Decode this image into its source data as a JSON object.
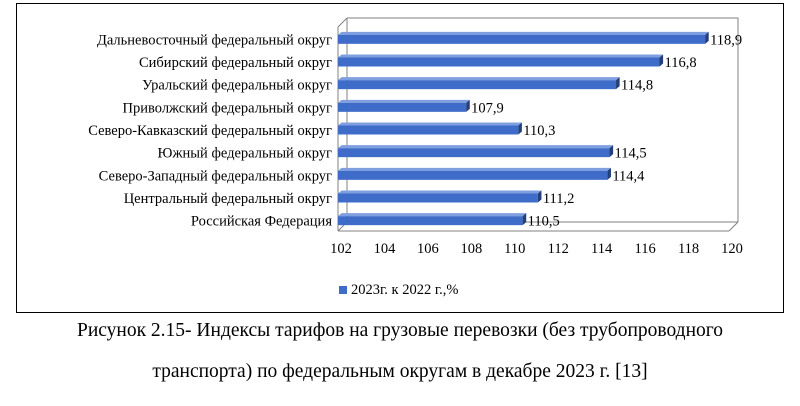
{
  "chart_data": {
    "type": "bar",
    "orientation": "horizontal",
    "categories": [
      "Дальневосточный федеральный округ",
      "Сибирский федеральный округ",
      "Уральский федеральный округ",
      "Приволжский федеральный округ",
      "Северо-Кавказский федеральный округ",
      "Южный федеральный округ",
      "Северо-Западный федеральный округ",
      "Центральный федеральный округ",
      "Российская Федерация"
    ],
    "series": [
      {
        "name": "2023г. к 2022 г.,%",
        "values": [
          118.9,
          116.8,
          114.8,
          107.9,
          110.3,
          114.5,
          114.4,
          111.2,
          110.5
        ],
        "labels": [
          "118,9",
          "116,8",
          "114,8",
          "107,9",
          "110,3",
          "114,5",
          "114,4",
          "111,2",
          "110,5"
        ]
      }
    ],
    "xlim": [
      102,
      120
    ],
    "xticks": [
      102,
      104,
      106,
      108,
      110,
      112,
      114,
      116,
      118,
      120
    ],
    "legend": "bottom-left",
    "grid": false,
    "bar_color": "#3f6cc8",
    "bar_dark": "#243f7a",
    "bar_light": "#7f9fe0"
  },
  "caption": {
    "line1": "Рисунок 2.15- Индексы тарифов на грузовые перевозки (без трубопроводного",
    "line2": "транспорта) по федеральным округам в декабре 2023 г. [13]"
  }
}
